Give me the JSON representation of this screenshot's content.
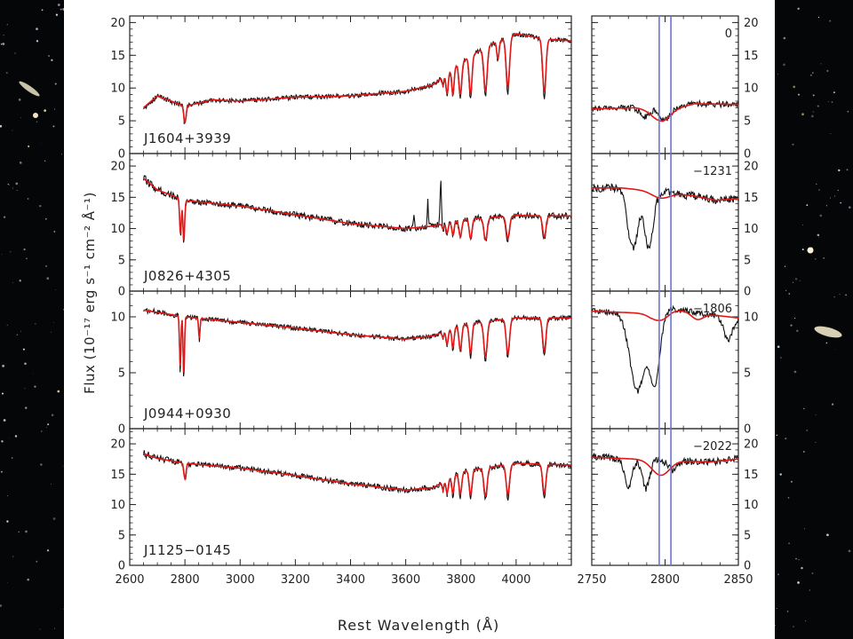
{
  "colors": {
    "observed": "#111111",
    "model": "#e01818",
    "marker_line": "#6b73d9",
    "axis": "#222222",
    "figure_bg": "#ffffff",
    "space_bg": "#050608"
  },
  "chart_data": {
    "type": "line",
    "x_label": "Rest Wavelength (Å)",
    "y_label": "Flux (10⁻¹⁷ erg s⁻¹ cm⁻² Å⁻¹)",
    "left_x_range": [
      2600,
      4200
    ],
    "left_x_ticks": [
      "2600",
      "2800",
      "3000",
      "3200",
      "3400",
      "3600",
      "3800",
      "4000"
    ],
    "right_x_range": [
      2750,
      2850
    ],
    "right_x_ticks": [
      "2750",
      "2800",
      "2850"
    ],
    "vertical_lines_angstrom": [
      2796,
      2804
    ],
    "panels": [
      {
        "object": "J1604+3939",
        "velocity_label": "0",
        "y_range": [
          0,
          21
        ],
        "y_ticks": [
          "0",
          "5",
          "10",
          "15",
          "20"
        ],
        "continuum": [
          [
            2650,
            7
          ],
          [
            2700,
            8.8
          ],
          [
            2800,
            7.2
          ],
          [
            2900,
            8.2
          ],
          [
            3000,
            8.0
          ],
          [
            3200,
            8.6
          ],
          [
            3400,
            8.8
          ],
          [
            3600,
            9.5
          ],
          [
            3700,
            10.5
          ],
          [
            3800,
            14.0
          ],
          [
            3900,
            16.5
          ],
          [
            4000,
            18.3
          ],
          [
            4100,
            17.5
          ],
          [
            4200,
            17.2
          ]
        ],
        "absorptions": [
          [
            2800,
            2.8,
            4
          ],
          [
            3735,
            1.5,
            3
          ],
          [
            3750,
            3.5,
            4
          ],
          [
            3771,
            4.5,
            4
          ],
          [
            3798,
            5.5,
            5
          ],
          [
            3835,
            6.5,
            5
          ],
          [
            3889,
            7.5,
            6
          ],
          [
            3934,
            3.0,
            4
          ],
          [
            3970,
            8.5,
            6
          ],
          [
            4102,
            9.0,
            6
          ]
        ],
        "noise": 0.35,
        "zoom_continuum": [
          [
            2750,
            6.8
          ],
          [
            2780,
            7.0
          ],
          [
            2800,
            6.5
          ],
          [
            2820,
            7.6
          ],
          [
            2850,
            7.5
          ]
        ],
        "zoom_model_dips": [
          [
            2797,
            1.6,
            6
          ]
        ],
        "zoom_obs_dips": [
          [
            2786,
            1.2,
            3
          ],
          [
            2800,
            1.4,
            3
          ]
        ]
      },
      {
        "object": "J0826+4305",
        "velocity_label": "−1231",
        "y_range": [
          0,
          22
        ],
        "y_ticks": [
          "0",
          "5",
          "10",
          "15",
          "20"
        ],
        "continuum": [
          [
            2650,
            18
          ],
          [
            2700,
            16.2
          ],
          [
            2800,
            14.5
          ],
          [
            3000,
            13.6
          ],
          [
            3200,
            12.2
          ],
          [
            3400,
            10.8
          ],
          [
            3600,
            10.0
          ],
          [
            3700,
            10.4
          ],
          [
            3800,
            11.4
          ],
          [
            4000,
            12.1
          ],
          [
            4200,
            12.0
          ]
        ],
        "absorptions": [
          [
            2784,
            6.5,
            3
          ],
          [
            2796,
            7.5,
            3
          ],
          [
            3735,
            1.0,
            3
          ],
          [
            3750,
            1.8,
            4
          ],
          [
            3771,
            2.4,
            4
          ],
          [
            3798,
            3.0,
            5
          ],
          [
            3835,
            3.5,
            5
          ],
          [
            3889,
            4.0,
            6
          ],
          [
            3970,
            4.0,
            6
          ],
          [
            4102,
            3.8,
            6
          ]
        ],
        "emissions": [
          [
            3727,
            7,
            2.5
          ],
          [
            3680,
            4,
            2
          ],
          [
            3630,
            2,
            2
          ]
        ],
        "noise": 0.5,
        "zoom_continuum": [
          [
            2750,
            16.5
          ],
          [
            2770,
            16.5
          ],
          [
            2800,
            15.8
          ],
          [
            2820,
            15.2
          ],
          [
            2835,
            14.5
          ],
          [
            2850,
            14.8
          ]
        ],
        "zoom_model_dips": [
          [
            2797,
            1.0,
            6
          ]
        ],
        "zoom_obs_dips": [
          [
            2778,
            9.5,
            3.5
          ],
          [
            2789,
            9.0,
            3
          ]
        ]
      },
      {
        "object": "J0944+0930",
        "velocity_label": "−1806",
        "y_range": [
          0,
          12.3
        ],
        "y_ticks": [
          "0",
          "5",
          "10"
        ],
        "continuum": [
          [
            2650,
            10.6
          ],
          [
            2800,
            10.0
          ],
          [
            3000,
            9.5
          ],
          [
            3200,
            9.0
          ],
          [
            3400,
            8.4
          ],
          [
            3600,
            8.0
          ],
          [
            3700,
            8.3
          ],
          [
            3800,
            9.3
          ],
          [
            4000,
            9.9
          ],
          [
            4200,
            9.9
          ]
        ],
        "absorptions": [
          [
            2783,
            5.0,
            2.5
          ],
          [
            2796,
            6.0,
            2.5
          ],
          [
            2852,
            2.0,
            2.5
          ],
          [
            3735,
            0.6,
            3
          ],
          [
            3750,
            1.4,
            4
          ],
          [
            3771,
            2.0,
            4
          ],
          [
            3798,
            2.5,
            5
          ],
          [
            3835,
            3.0,
            5
          ],
          [
            3889,
            3.5,
            6
          ],
          [
            3970,
            3.5,
            6
          ],
          [
            4102,
            3.3,
            6
          ]
        ],
        "noise": 0.2,
        "zoom_continuum": [
          [
            2750,
            10.5
          ],
          [
            2790,
            10.3
          ],
          [
            2805,
            10.7
          ],
          [
            2830,
            10.2
          ],
          [
            2850,
            9.9
          ]
        ],
        "zoom_model_dips": [
          [
            2797,
            0.8,
            6
          ],
          [
            2822,
            0.6,
            4
          ]
        ],
        "zoom_obs_dips": [
          [
            2781,
            7.0,
            5
          ],
          [
            2793,
            6.2,
            3.5
          ],
          [
            2843,
            2.0,
            3
          ]
        ]
      },
      {
        "object": "J1125−0145",
        "velocity_label": "−2022",
        "y_range": [
          0,
          22.5
        ],
        "y_ticks": [
          "0",
          "5",
          "10",
          "15",
          "20"
        ],
        "continuum": [
          [
            2650,
            18.4
          ],
          [
            2700,
            17.6
          ],
          [
            2800,
            16.8
          ],
          [
            3000,
            16.0
          ],
          [
            3200,
            14.8
          ],
          [
            3400,
            13.4
          ],
          [
            3600,
            12.4
          ],
          [
            3700,
            12.8
          ],
          [
            3800,
            15.4
          ],
          [
            4000,
            16.8
          ],
          [
            4200,
            16.5
          ]
        ],
        "absorptions": [
          [
            2800,
            2.8,
            4
          ],
          [
            3735,
            1.5,
            3
          ],
          [
            3750,
            2.5,
            4
          ],
          [
            3771,
            3.2,
            4
          ],
          [
            3798,
            4.0,
            5
          ],
          [
            3835,
            4.6,
            5
          ],
          [
            3889,
            5.2,
            6
          ],
          [
            3970,
            5.5,
            6
          ],
          [
            4102,
            5.3,
            6
          ]
        ],
        "noise": 0.45,
        "zoom_continuum": [
          [
            2750,
            17.8
          ],
          [
            2780,
            17.5
          ],
          [
            2800,
            17.3
          ],
          [
            2830,
            17.0
          ],
          [
            2850,
            17.5
          ]
        ],
        "zoom_model_dips": [
          [
            2797,
            2.5,
            6
          ]
        ],
        "zoom_obs_dips": [
          [
            2775,
            5.0,
            2.5
          ],
          [
            2787,
            4.8,
            2.5
          ],
          [
            2805,
            1.5,
            3
          ]
        ]
      }
    ]
  }
}
